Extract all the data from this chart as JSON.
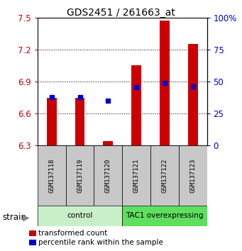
{
  "title": "GDS2451 / 261663_at",
  "samples": [
    "GSM137118",
    "GSM137119",
    "GSM137120",
    "GSM137121",
    "GSM137122",
    "GSM137123"
  ],
  "red_values": [
    6.745,
    6.745,
    6.345,
    7.05,
    7.47,
    7.25
  ],
  "blue_values": [
    6.755,
    6.755,
    6.72,
    6.845,
    6.885,
    6.855
  ],
  "bar_bottom": 6.3,
  "ylim_left": [
    6.3,
    7.5
  ],
  "ylim_right": [
    0,
    100
  ],
  "yticks_left": [
    6.3,
    6.6,
    6.9,
    7.2,
    7.5
  ],
  "yticks_right": [
    0,
    25,
    50,
    75,
    100
  ],
  "ytick_labels_right": [
    "0",
    "25",
    "50",
    "75",
    "100%"
  ],
  "groups": [
    {
      "label": "control",
      "indices": [
        0,
        1,
        2
      ],
      "color": "#c8f0c8"
    },
    {
      "label": "TAC1 overexpressing",
      "indices": [
        3,
        4,
        5
      ],
      "color": "#5ee05e"
    }
  ],
  "bar_color": "#cc0000",
  "dot_color": "#0000cc",
  "bar_width": 0.35,
  "background_color": "#ffffff",
  "tick_label_color_left": "#cc0000",
  "tick_label_color_right": "#0000cc",
  "legend_items": [
    {
      "color": "#cc0000",
      "label": "transformed count"
    },
    {
      "color": "#0000cc",
      "label": "percentile rank within the sample"
    }
  ],
  "strain_label": "strain",
  "sample_box_color": "#c8c8c8",
  "figsize": [
    3.41,
    3.54
  ],
  "dpi": 100
}
